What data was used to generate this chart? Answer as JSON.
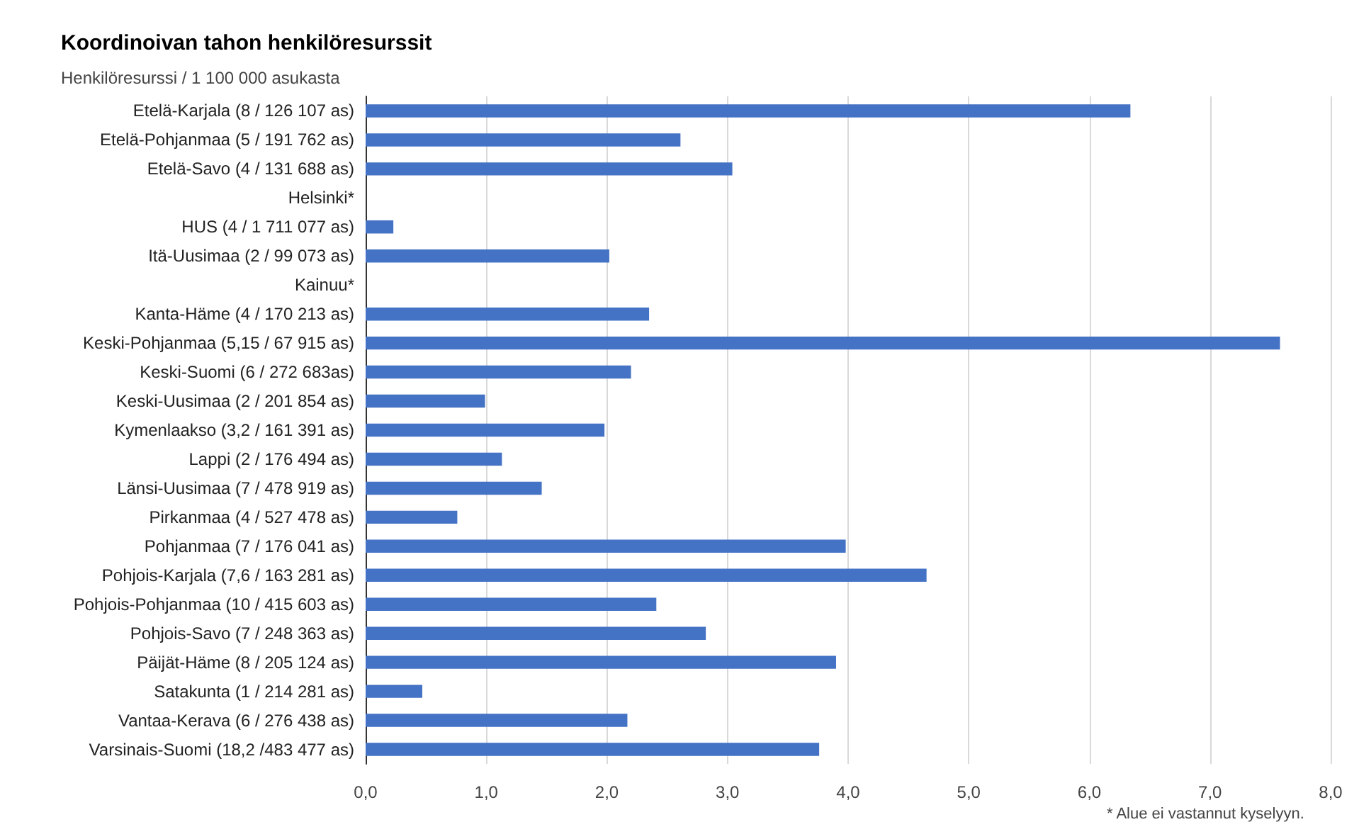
{
  "chart_data": {
    "type": "bar",
    "orientation": "horizontal",
    "title": "Koordinoivan tahon henkilöresurssit",
    "subtitle": "Henkilöresurssi / 1 100 000 asukasta",
    "categories": [
      "Etelä-Karjala (8 / 126 107 as)",
      "Etelä-Pohjanmaa (5 / 191 762 as)",
      "Etelä-Savo (4 / 131 688 as)",
      "Helsinki*",
      "HUS (4 / 1 711 077 as)",
      "Itä-Uusimaa (2 / 99 073 as)",
      "Kainuu*",
      "Kanta-Häme (4 / 170 213 as)",
      "Keski-Pohjanmaa (5,15 / 67 915 as)",
      "Keski-Suomi (6 / 272 683as)",
      "Keski-Uusimaa (2 / 201 854 as)",
      "Kymenlaakso (3,2 / 161 391 as)",
      "Lappi (2 / 176 494 as)",
      "Länsi-Uusimaa (7 / 478 919 as)",
      "Pirkanmaa (4 / 527 478 as)",
      "Pohjanmaa (7 / 176 041 as)",
      "Pohjois-Karjala (7,6 / 163 281 as)",
      "Pohjois-Pohjanmaa (10 / 415 603 as)",
      "Pohjois-Savo (7 / 248 363 as)",
      "Päijät-Häme (8 / 205 124 as)",
      "Satakunta (1 / 214 281 as)",
      "Vantaa-Kerava (6 / 276 438 as)",
      "Varsinais-Suomi (18,2 /483 477 as)"
    ],
    "values": [
      6.34,
      2.61,
      3.04,
      null,
      0.23,
      2.02,
      null,
      2.35,
      7.58,
      2.2,
      0.99,
      1.98,
      1.13,
      1.46,
      0.76,
      3.98,
      4.65,
      2.41,
      2.82,
      3.9,
      0.47,
      2.17,
      3.76
    ],
    "color": "#4472c4",
    "xlim": [
      0,
      8
    ],
    "xticks": [
      {
        "value": 0,
        "label": "0,0"
      },
      {
        "value": 1,
        "label": "1,0"
      },
      {
        "value": 2,
        "label": "2,0"
      },
      {
        "value": 3,
        "label": "3,0"
      },
      {
        "value": 4,
        "label": "4,0"
      },
      {
        "value": 5,
        "label": "5,0"
      },
      {
        "value": 6,
        "label": "6,0"
      },
      {
        "value": 7,
        "label": "7,0"
      },
      {
        "value": 8,
        "label": "8,0"
      }
    ],
    "grid": "x",
    "annotations": [
      "* Alue ei vastannut kyselyyn."
    ]
  }
}
